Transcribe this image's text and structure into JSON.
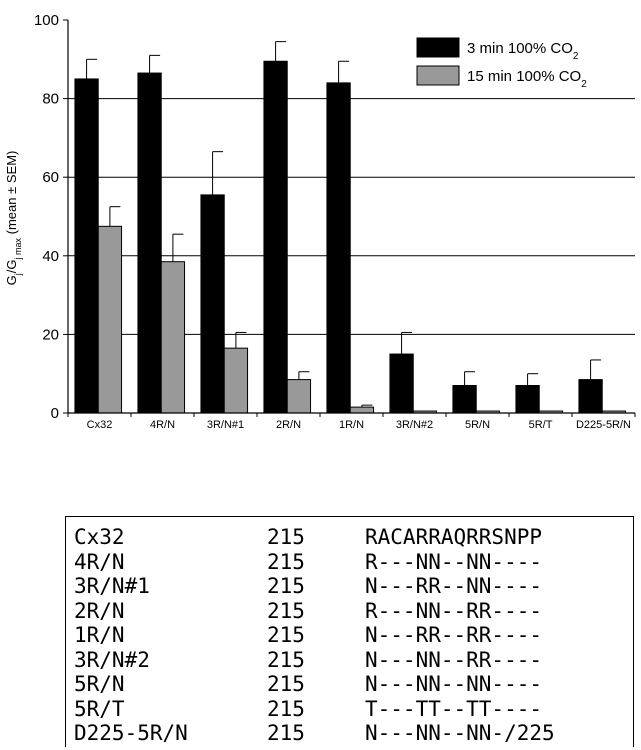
{
  "chart_data": {
    "type": "bar",
    "categories": [
      "Cx32",
      "4R/N",
      "3R/N#1",
      "2R/N",
      "1R/N",
      "3R/N#2",
      "5R/N",
      "5R/T",
      "D225-5R/N"
    ],
    "series": [
      {
        "name": "3 min 100% CO2",
        "color": "#000000",
        "values": [
          85,
          86.5,
          55.5,
          89.5,
          84,
          15,
          7,
          7,
          8.5
        ],
        "errors": [
          5,
          4.5,
          11,
          5,
          5.5,
          5.5,
          3.5,
          3,
          5
        ]
      },
      {
        "name": "15 min 100% CO2",
        "color": "#999999",
        "values": [
          47.5,
          38.5,
          16.5,
          8.5,
          1.5,
          0.5,
          0.5,
          0.5,
          0.5
        ],
        "errors": [
          5,
          7,
          4,
          2,
          0.5,
          0,
          0,
          0,
          0
        ]
      }
    ],
    "ylabel": "Gj/Gj max (mean ± SEM)",
    "ylim": [
      0,
      100
    ],
    "yticks": [
      0,
      20,
      40,
      60,
      80,
      100
    ],
    "grid": "horizontal at 20, 40, 60, 80",
    "legend_position": "top-right",
    "legend": [
      {
        "text": "3 min 100% CO",
        "sub": "2"
      },
      {
        "text": "15 min 100% CO",
        "sub": "2"
      }
    ]
  },
  "sequence_table": {
    "rows": [
      {
        "name": "Cx32",
        "pos": "215",
        "seq": "RACARRAQRRSNPP"
      },
      {
        "name": "4R/N",
        "pos": "215",
        "seq": "R---NN--NN----"
      },
      {
        "name": "3R/N#1",
        "pos": "215",
        "seq": "N---RR--NN----"
      },
      {
        "name": "2R/N",
        "pos": "215",
        "seq": "R---NN--RR----"
      },
      {
        "name": "1R/N",
        "pos": "215",
        "seq": "N---RR--RR----"
      },
      {
        "name": "3R/N#2",
        "pos": "215",
        "seq": "N---NN--RR----"
      },
      {
        "name": "5R/N",
        "pos": "215",
        "seq": "N---NN--NN----"
      },
      {
        "name": "5R/T",
        "pos": "215",
        "seq": "T---TT--TT----"
      },
      {
        "name": "D225-5R/N",
        "pos": "215",
        "seq": "N---NN--NN-/225"
      }
    ]
  }
}
